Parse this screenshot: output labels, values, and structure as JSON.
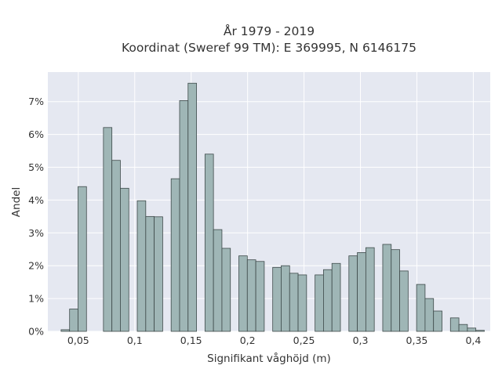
{
  "chart_data": {
    "type": "bar",
    "title": "År 1979 - 2019",
    "subtitle": "Koordinat (Sweref 99 TM): E 369995, N 6146175",
    "xlabel": "Signifikant våghöjd (m)",
    "ylabel": "Andel",
    "xlim": [
      0.023,
      0.415
    ],
    "ylim": [
      0,
      0.079
    ],
    "bin_width": 0.0075,
    "x_ticks": [
      0.05,
      0.1,
      0.15,
      0.2,
      0.25,
      0.3,
      0.35,
      0.4
    ],
    "x_tick_labels": [
      "0,05",
      "0,1",
      "0,15",
      "0,2",
      "0,25",
      "0,3",
      "0,35",
      "0,4"
    ],
    "y_ticks": [
      0,
      0.01,
      0.02,
      0.03,
      0.04,
      0.05,
      0.06,
      0.07
    ],
    "y_tick_labels": [
      "0%",
      "1%",
      "2%",
      "3%",
      "4%",
      "5%",
      "6%",
      "7%"
    ],
    "grid": true,
    "colors": {
      "plot_bg": "#e5e8f1",
      "bar_fill": "#9fb6b6",
      "bar_edge": "#3e4a4a"
    },
    "bins": [
      {
        "x": 0.0385,
        "value": 0.0005
      },
      {
        "x": 0.046,
        "value": 0.0068
      },
      {
        "x": 0.0535,
        "value": 0.0441
      },
      {
        "x": 0.076,
        "value": 0.0621
      },
      {
        "x": 0.0835,
        "value": 0.0521
      },
      {
        "x": 0.091,
        "value": 0.0436
      },
      {
        "x": 0.106,
        "value": 0.0398
      },
      {
        "x": 0.1135,
        "value": 0.035
      },
      {
        "x": 0.121,
        "value": 0.0349
      },
      {
        "x": 0.136,
        "value": 0.0465
      },
      {
        "x": 0.1435,
        "value": 0.0703
      },
      {
        "x": 0.151,
        "value": 0.0756
      },
      {
        "x": 0.166,
        "value": 0.054
      },
      {
        "x": 0.1735,
        "value": 0.031
      },
      {
        "x": 0.181,
        "value": 0.0253
      },
      {
        "x": 0.196,
        "value": 0.023
      },
      {
        "x": 0.2035,
        "value": 0.0218
      },
      {
        "x": 0.211,
        "value": 0.0213
      },
      {
        "x": 0.226,
        "value": 0.0195
      },
      {
        "x": 0.2335,
        "value": 0.02
      },
      {
        "x": 0.241,
        "value": 0.0177
      },
      {
        "x": 0.2485,
        "value": 0.0172
      },
      {
        "x": 0.2635,
        "value": 0.0172
      },
      {
        "x": 0.271,
        "value": 0.0188
      },
      {
        "x": 0.2785,
        "value": 0.0207
      },
      {
        "x": 0.2935,
        "value": 0.023
      },
      {
        "x": 0.301,
        "value": 0.024
      },
      {
        "x": 0.3085,
        "value": 0.0255
      },
      {
        "x": 0.3235,
        "value": 0.0265
      },
      {
        "x": 0.331,
        "value": 0.0249
      },
      {
        "x": 0.3385,
        "value": 0.0184
      },
      {
        "x": 0.3535,
        "value": 0.0143
      },
      {
        "x": 0.361,
        "value": 0.01
      },
      {
        "x": 0.3685,
        "value": 0.0062
      },
      {
        "x": 0.3835,
        "value": 0.0041
      },
      {
        "x": 0.391,
        "value": 0.0021
      },
      {
        "x": 0.3985,
        "value": 0.001
      },
      {
        "x": 0.406,
        "value": 0.0003
      }
    ]
  }
}
